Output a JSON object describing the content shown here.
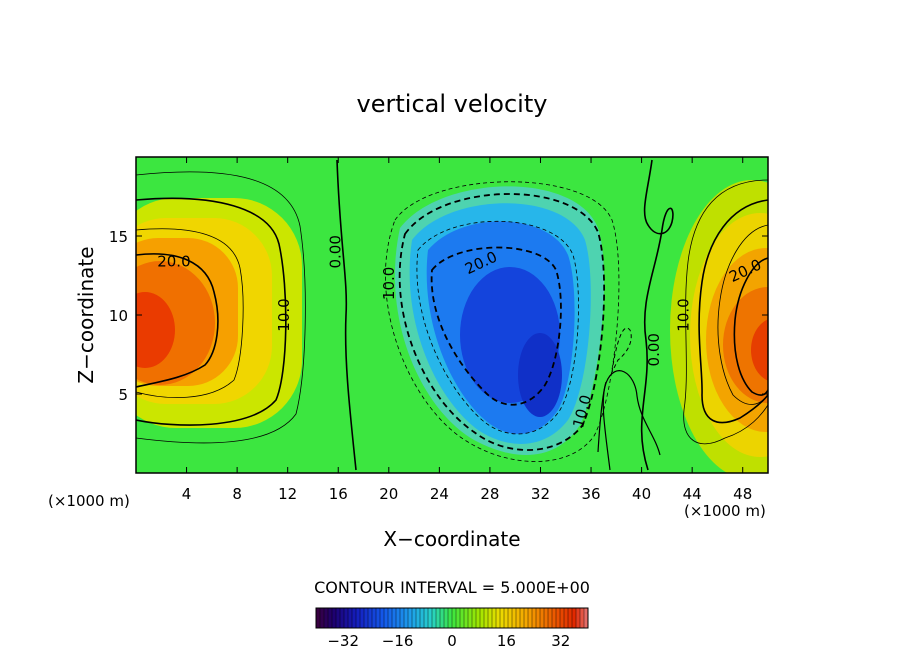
{
  "chart_data": {
    "type": "heatmap",
    "title": "vertical velocity",
    "xlabel": "X−coordinate",
    "ylabel": "Z−coordinate",
    "x_unit": "(×1000 m)",
    "z_unit": "(×1000 m)",
    "xlim": [
      0,
      50
    ],
    "ylim": [
      0,
      20
    ],
    "x_ticks": [
      4,
      8,
      12,
      16,
      20,
      24,
      28,
      32,
      36,
      40,
      44,
      48
    ],
    "y_ticks": [
      5,
      10,
      15
    ],
    "contour_interval_text": "CONTOUR INTERVAL = 5.000E+00",
    "contour_interval": 5,
    "colorbar": {
      "range": [
        -40,
        40
      ],
      "ticks": [
        -32,
        -16,
        0,
        16,
        32
      ],
      "tick_labels": [
        "−32",
        "−16",
        "0",
        "16",
        "32"
      ]
    },
    "field_features": [
      {
        "name": "updraft-left",
        "x": 1.0,
        "z": 9.2,
        "value": 33
      },
      {
        "name": "downdraft-center",
        "x": 29.5,
        "z": 8.5,
        "value": -33
      },
      {
        "name": "updraft-right",
        "x": 48.5,
        "z": 8.3,
        "value": 32
      }
    ],
    "contour_labels": [
      {
        "text": "20.0",
        "x": 3.0,
        "z": 13.4,
        "angle": 0
      },
      {
        "text": "10.0",
        "x": 11.7,
        "z": 10.0,
        "angle": -90
      },
      {
        "text": "0.00",
        "x": 15.8,
        "z": 14.0,
        "angle": -90
      },
      {
        "text": "10.0",
        "x": 20.0,
        "z": 12.0,
        "angle": -90
      },
      {
        "text": "20.0",
        "x": 27.3,
        "z": 13.3,
        "angle": -25
      },
      {
        "text": "10.0",
        "x": 35.3,
        "z": 3.9,
        "angle": -75
      },
      {
        "text": "0.00",
        "x": 41.0,
        "z": 7.8,
        "angle": -90
      },
      {
        "text": "10.0",
        "x": 43.3,
        "z": 10.0,
        "angle": -90
      },
      {
        "text": "20.0",
        "x": 48.2,
        "z": 12.8,
        "angle": -25
      }
    ]
  }
}
